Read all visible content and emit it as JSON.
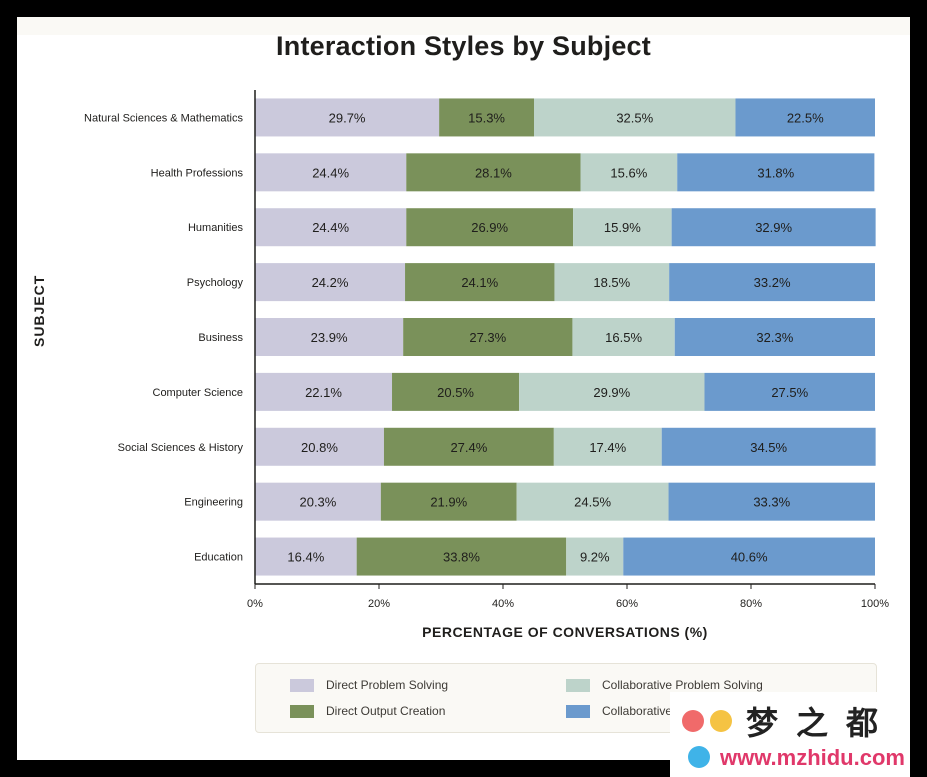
{
  "chart_data": {
    "type": "bar",
    "orientation": "horizontal",
    "stacked": true,
    "title": "Interaction Styles by Subject",
    "xlabel": "PERCENTAGE OF CONVERSATIONS (%)",
    "ylabel": "SUBJECT",
    "xlim": [
      0,
      100
    ],
    "x_ticks": [
      "0%",
      "20%",
      "40%",
      "60%",
      "80%",
      "100%"
    ],
    "categories": [
      "Natural Sciences & Mathematics",
      "Health Professions",
      "Humanities",
      "Psychology",
      "Business",
      "Computer Science",
      "Social Sciences & History",
      "Engineering",
      "Education"
    ],
    "series": [
      {
        "name": "Direct Problem Solving",
        "color": "#cbc9dc",
        "values": [
          29.7,
          24.4,
          24.4,
          24.2,
          23.9,
          22.1,
          20.8,
          20.3,
          16.4
        ]
      },
      {
        "name": "Direct Output Creation",
        "color": "#7a915a",
        "values": [
          15.3,
          28.1,
          26.9,
          24.1,
          27.3,
          20.5,
          27.4,
          21.9,
          33.8
        ]
      },
      {
        "name": "Collaborative Problem Solving",
        "color": "#bdd3ca",
        "values": [
          32.5,
          15.6,
          15.9,
          18.5,
          16.5,
          29.9,
          17.4,
          24.5,
          9.2
        ]
      },
      {
        "name": "Collaborative Output Creation",
        "color": "#6b9acd",
        "values": [
          22.5,
          31.8,
          32.9,
          33.2,
          32.3,
          27.5,
          34.5,
          33.3,
          40.6
        ]
      }
    ],
    "legend": "bottom",
    "grid": false
  },
  "legend_labels": [
    "Direct Problem Solving",
    "Direct Output Creation",
    "Collaborative Problem Solving",
    "Collaborative C"
  ],
  "watermark": {
    "cn": "梦之都",
    "url": "www.mzhidu.com"
  }
}
